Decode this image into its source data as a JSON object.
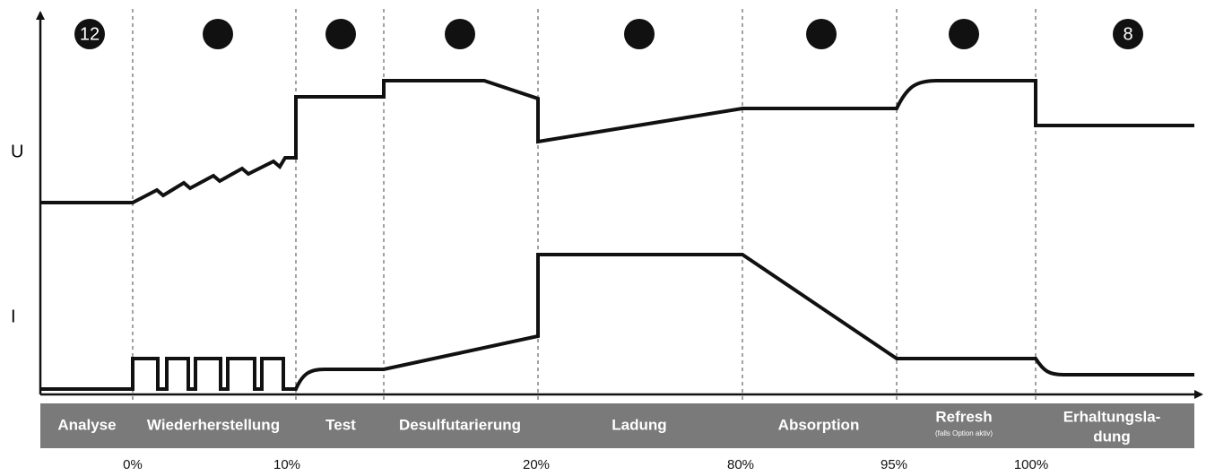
{
  "axes": {
    "voltage": "U",
    "current": "I"
  },
  "phases": [
    {
      "lines": [
        "Analyse"
      ],
      "badge": "12"
    },
    {
      "lines": [
        "Wiederherstellung"
      ]
    },
    {
      "lines": [
        "Test"
      ]
    },
    {
      "lines": [
        "Desulfutarierung"
      ]
    },
    {
      "lines": [
        "Ladung"
      ]
    },
    {
      "lines": [
        "Absorption"
      ]
    },
    {
      "lines": [
        "Refresh"
      ],
      "note": "(falls Option aktiv)"
    },
    {
      "lines": [
        "Erhaltungsla-",
        "dung"
      ],
      "badge": "8"
    }
  ],
  "thresholds": [
    "0%",
    "10%",
    "20%",
    "80%",
    "95%",
    "100%"
  ]
}
